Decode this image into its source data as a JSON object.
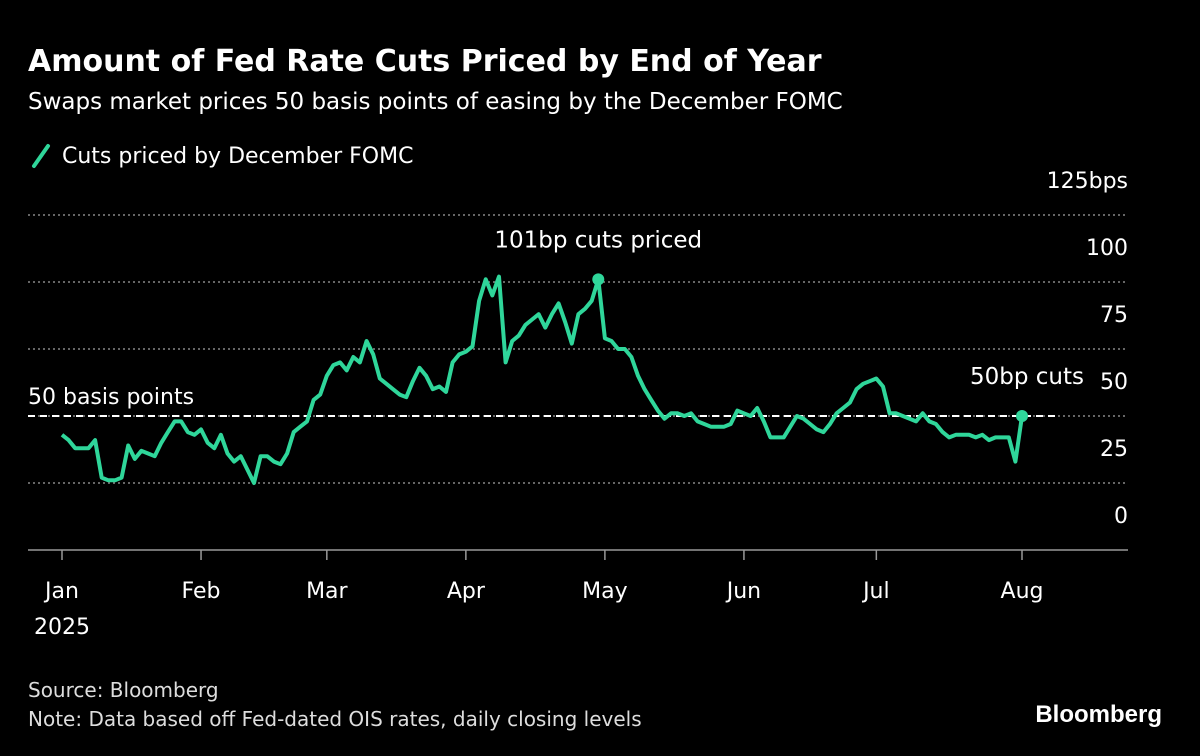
{
  "chart_data": {
    "type": "line",
    "title": "Amount of Fed Rate Cuts Priced by End of Year",
    "subtitle": "Swaps market prices 50 basis points of easing by the December FOMC",
    "categories": [
      "Jan",
      null,
      null,
      null,
      null,
      null,
      null,
      null,
      null,
      null,
      null,
      null,
      null,
      null,
      null,
      null,
      null,
      null,
      null,
      null,
      null,
      "Feb",
      null,
      null,
      null,
      null,
      null,
      null,
      null,
      null,
      null,
      null,
      null,
      null,
      null,
      null,
      null,
      null,
      null,
      null,
      "Mar",
      null,
      null,
      null,
      null,
      null,
      null,
      null,
      null,
      null,
      null,
      null,
      null,
      null,
      null,
      null,
      null,
      null,
      null,
      null,
      null,
      "Apr",
      null,
      null,
      null,
      null,
      null,
      null,
      null,
      null,
      null,
      null,
      null,
      null,
      null,
      null,
      null,
      null,
      null,
      null,
      null,
      null,
      "May",
      null,
      null,
      null,
      null,
      null,
      null,
      null,
      null,
      null,
      null,
      null,
      null,
      null,
      null,
      null,
      null,
      null,
      null,
      null,
      null,
      "Jun",
      null,
      null,
      null,
      null,
      null,
      null,
      null,
      null,
      null,
      null,
      null,
      null,
      null,
      null,
      null,
      null,
      null,
      null,
      null,
      "Jul",
      null,
      null,
      null,
      null,
      null,
      null,
      null,
      null,
      null,
      null,
      null,
      null,
      null,
      null,
      null,
      null,
      null,
      null,
      null,
      null,
      null,
      "Aug"
    ],
    "year_label": "2025",
    "series": [
      {
        "name": "Cuts priced by December FOMC",
        "color": "#2fd69a",
        "values": [
          43,
          41,
          38,
          38,
          38,
          41,
          27,
          26,
          26,
          27,
          39,
          34,
          37,
          36,
          35,
          40,
          44,
          48,
          48,
          44,
          43,
          45,
          40,
          38,
          43,
          36,
          33,
          35,
          30,
          25,
          35,
          35,
          33,
          32,
          36,
          44,
          46,
          48,
          56,
          58,
          65,
          69,
          70,
          67,
          72,
          70,
          78,
          73,
          64,
          62,
          60,
          58,
          57,
          63,
          68,
          65,
          60,
          61,
          59,
          70,
          73,
          74,
          76,
          93,
          101,
          95,
          102,
          70,
          78,
          80,
          84,
          86,
          88,
          83,
          88,
          92,
          85,
          77,
          88,
          90,
          93,
          101,
          79,
          78,
          75,
          75,
          72,
          65,
          60,
          56,
          52,
          49,
          51,
          51,
          50,
          51,
          48,
          47,
          46,
          46,
          46,
          47,
          52,
          51,
          50,
          53,
          48,
          42,
          42,
          42,
          46,
          50,
          49,
          47,
          45,
          44,
          47,
          51,
          53,
          55,
          60,
          62,
          63,
          64,
          61,
          51,
          51,
          50,
          49,
          48,
          51,
          48,
          47,
          44,
          42,
          43,
          43,
          43,
          42,
          43,
          41,
          42,
          42,
          42,
          33,
          50
        ]
      }
    ],
    "ylim": [
      0,
      125
    ],
    "yticks": [
      0,
      25,
      50,
      75,
      100,
      {
        "value": 125,
        "label": "125bps"
      }
    ],
    "grid": true,
    "reference_line": {
      "value": 50,
      "label": "50 basis points"
    },
    "annotations": [
      {
        "index": 81,
        "text": "101bp cuts priced"
      },
      {
        "index": 145,
        "text": "50bp cuts"
      }
    ],
    "source": "Source: Bloomberg",
    "note": "Note: Data based off Fed-dated OIS rates, daily closing levels",
    "brand": "Bloomberg"
  }
}
